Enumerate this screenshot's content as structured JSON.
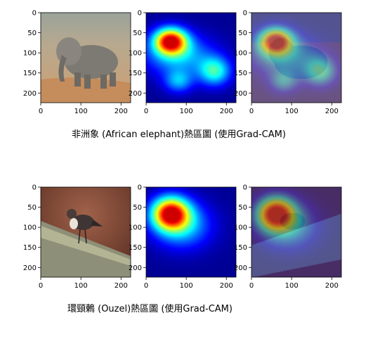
{
  "chart_data": [
    {
      "type": "heatmap",
      "caption": "非洲象 (African elephant)熱區圖 (使用Grad-CAM)",
      "axis_range": [
        0,
        224
      ],
      "x_ticks": [
        "0",
        "100",
        "200"
      ],
      "y_ticks": [
        "0",
        "50",
        "100",
        "150",
        "200"
      ],
      "panels": [
        "original-image",
        "gradcam-heatmap",
        "heatmap-overlay"
      ],
      "hotspots": [
        {
          "x": 60,
          "y": 70,
          "sx": 28,
          "sy": 22,
          "w": 1.0
        },
        {
          "x": 80,
          "y": 105,
          "sx": 60,
          "sy": 35,
          "w": 0.35
        },
        {
          "x": 170,
          "y": 145,
          "sx": 28,
          "sy": 25,
          "w": 0.45
        },
        {
          "x": 80,
          "y": 170,
          "sx": 25,
          "sy": 20,
          "w": 0.3
        }
      ]
    },
    {
      "type": "heatmap",
      "caption": "環頸鶇 (Ouzel)熱區圖 (使用Grad-CAM)",
      "axis_range": [
        0,
        224
      ],
      "x_ticks": [
        "0",
        "100",
        "200"
      ],
      "y_ticks": [
        "0",
        "50",
        "100",
        "150",
        "200"
      ],
      "panels": [
        "original-image",
        "gradcam-heatmap",
        "heatmap-overlay"
      ],
      "hotspots": [
        {
          "x": 60,
          "y": 65,
          "sx": 32,
          "sy": 28,
          "w": 1.0
        },
        {
          "x": 90,
          "y": 95,
          "sx": 50,
          "sy": 40,
          "w": 0.35
        }
      ]
    }
  ]
}
